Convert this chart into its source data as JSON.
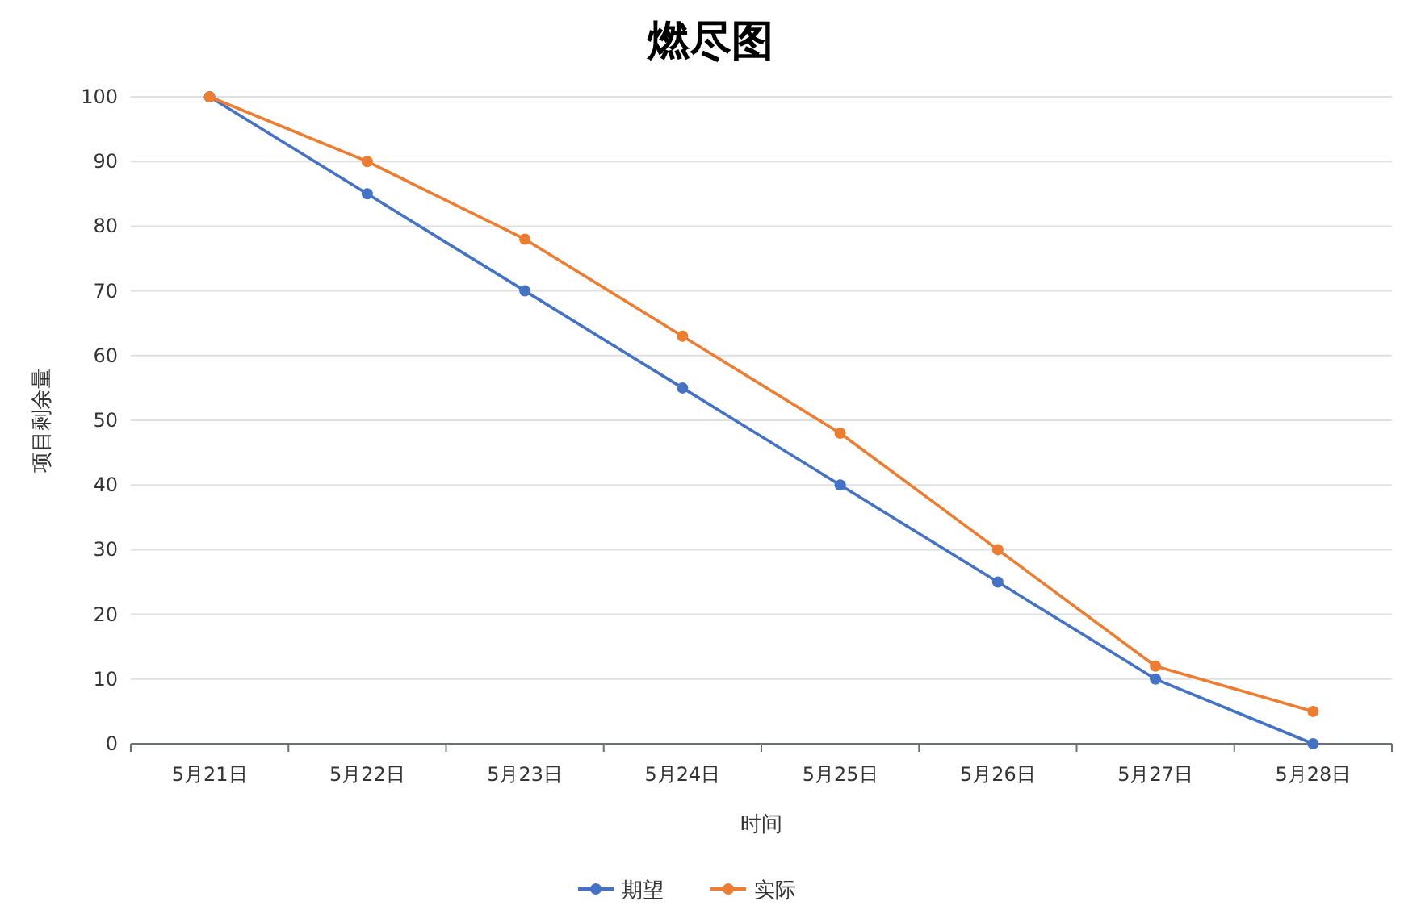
{
  "chart_data": {
    "type": "line",
    "title": "燃尽图",
    "xlabel": "时间",
    "ylabel": "项目剩余量",
    "categories": [
      "5月21日",
      "5月22日",
      "5月23日",
      "5月24日",
      "5月25日",
      "5月26日",
      "5月27日",
      "5月28日"
    ],
    "series": [
      {
        "name": "期望",
        "color": "#4472c4",
        "values": [
          100,
          85,
          70,
          55,
          40,
          25,
          10,
          0
        ]
      },
      {
        "name": "实际",
        "color": "#ed7d31",
        "values": [
          100,
          90,
          78,
          63,
          48,
          30,
          12,
          5
        ]
      }
    ],
    "ylim": [
      0,
      100
    ],
    "yticks": [
      0,
      10,
      20,
      30,
      40,
      50,
      60,
      70,
      80,
      90,
      100
    ],
    "grid": "y",
    "legend": "bottom",
    "marker": "circle",
    "line_style": "solid"
  }
}
